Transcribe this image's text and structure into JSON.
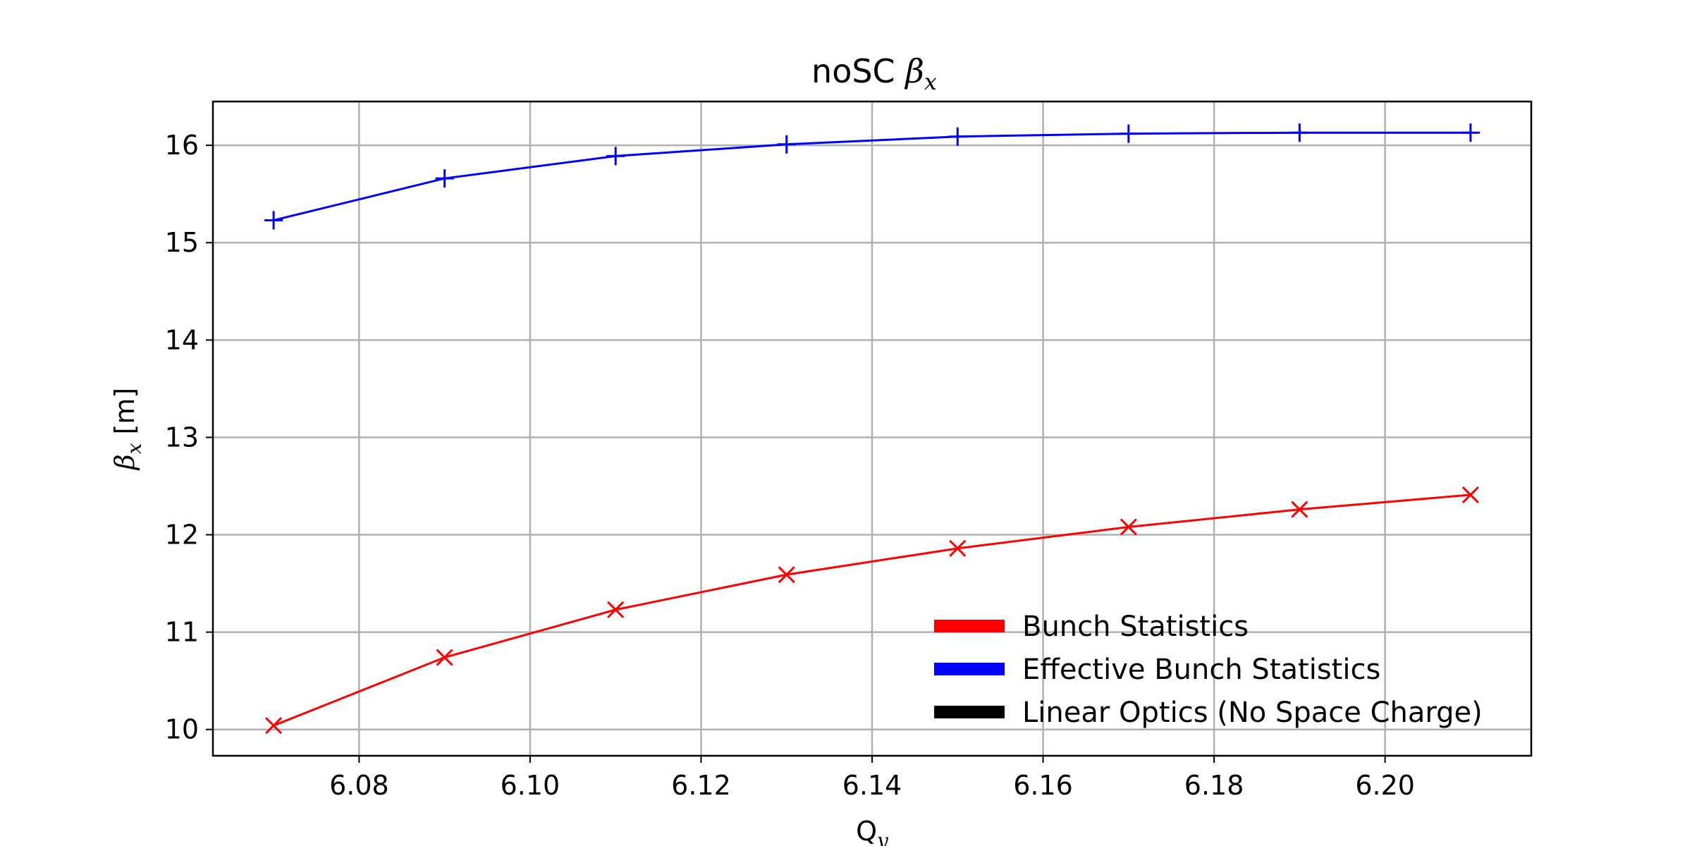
{
  "chart_data": {
    "type": "line",
    "title_prefix": "noSC ",
    "title_symbol": "β",
    "title_subscript": "x",
    "xlabel_main": "Q",
    "xlabel_subscript": "y",
    "ylabel_symbol": "β",
    "ylabel_subscript": "x",
    "ylabel_unit": " [m]",
    "xlim": [
      6.0629,
      6.2171
    ],
    "ylim": [
      9.73,
      16.45
    ],
    "xticks": [
      6.08,
      6.1,
      6.12,
      6.14,
      6.16,
      6.18,
      6.2
    ],
    "xtick_labels": [
      "6.08",
      "6.10",
      "6.12",
      "6.14",
      "6.16",
      "6.18",
      "6.20"
    ],
    "yticks": [
      10,
      11,
      12,
      13,
      14,
      15,
      16
    ],
    "ytick_labels": [
      "10",
      "11",
      "12",
      "13",
      "14",
      "15",
      "16"
    ],
    "grid": true,
    "legend_position": "lower-right",
    "x": [
      6.07,
      6.09,
      6.11,
      6.13,
      6.15,
      6.17,
      6.19,
      6.21
    ],
    "series": [
      {
        "name": "Bunch Statistics",
        "color": "#ff0000",
        "marker": "x",
        "values": [
          10.04,
          10.74,
          11.23,
          11.59,
          11.86,
          12.08,
          12.26,
          12.41
        ]
      },
      {
        "name": "Effective Bunch Statistics",
        "color": "#0000ff",
        "marker": "+",
        "values": [
          15.23,
          15.66,
          15.89,
          16.01,
          16.09,
          16.12,
          16.13,
          16.13
        ]
      }
    ],
    "legend": [
      {
        "label": "Bunch Statistics",
        "color": "#ff0000"
      },
      {
        "label": "Effective Bunch Statistics",
        "color": "#0000ff"
      },
      {
        "label": "Linear Optics (No Space Charge)",
        "color": "#000000"
      }
    ]
  }
}
